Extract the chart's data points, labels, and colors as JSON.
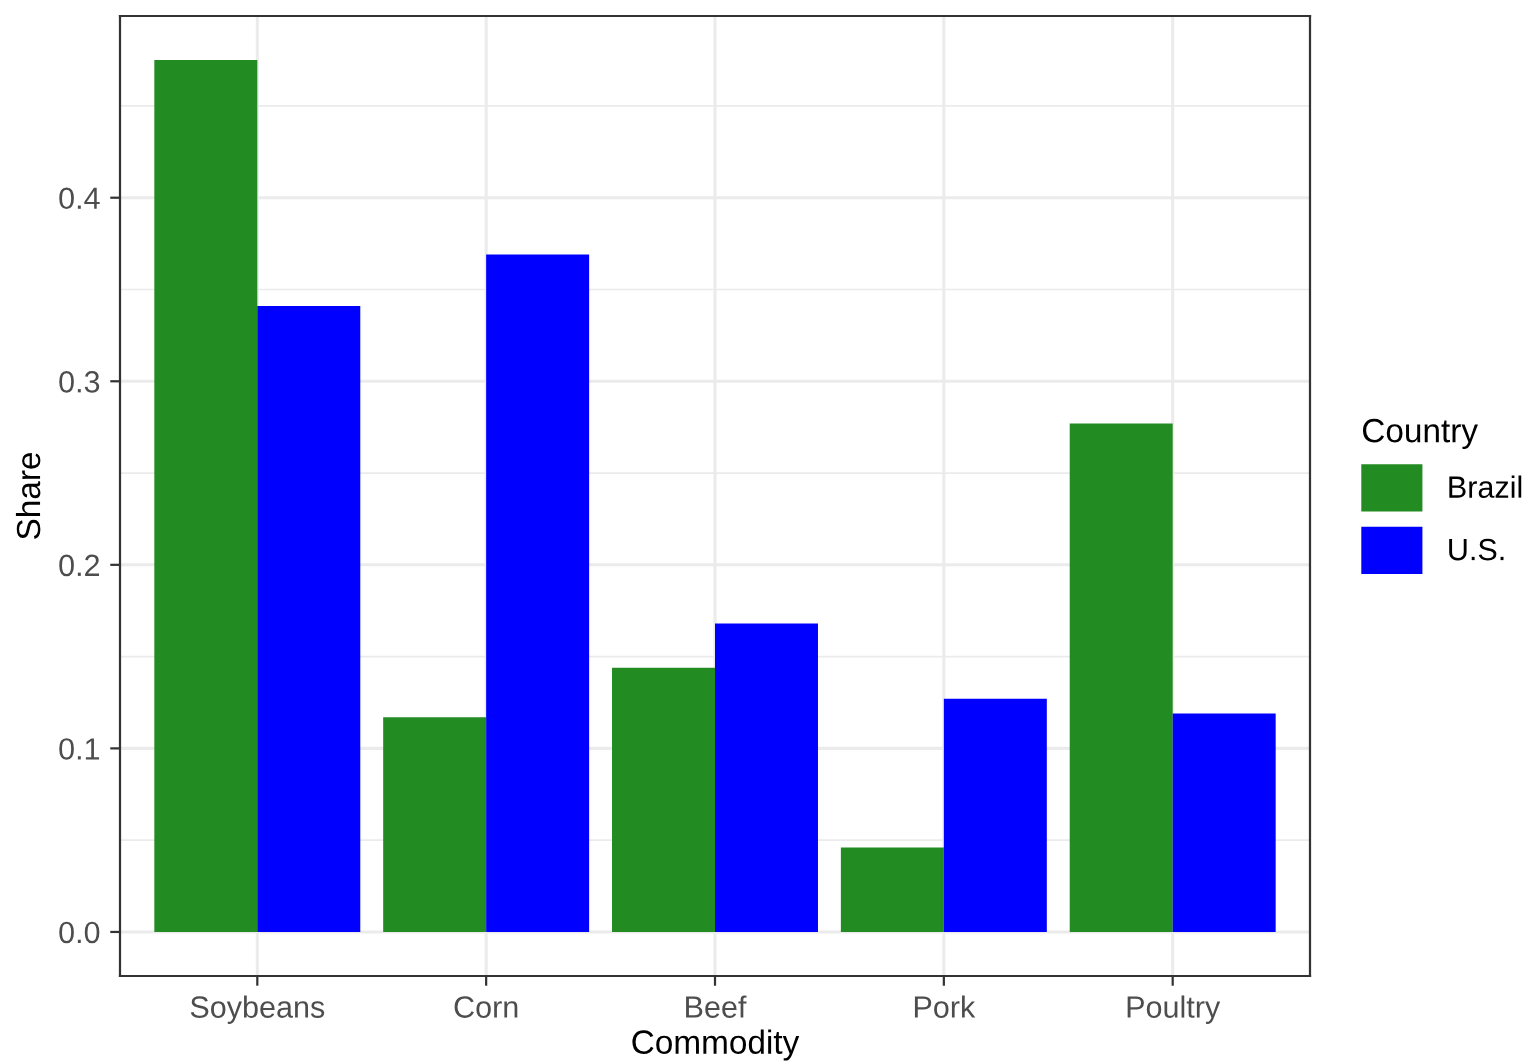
{
  "chart_data": {
    "type": "bar",
    "xlabel": "Commodity",
    "ylabel": "Share",
    "legend_title": "Country",
    "categories": [
      "Soybeans",
      "Corn",
      "Beef",
      "Pork",
      "Poultry"
    ],
    "series": [
      {
        "name": "Brazil",
        "color": "#228b22",
        "values": [
          0.475,
          0.117,
          0.144,
          0.046,
          0.277
        ]
      },
      {
        "name": "U.S.",
        "color": "#0000ff",
        "values": [
          0.341,
          0.369,
          0.168,
          0.127,
          0.119
        ]
      }
    ],
    "ylim": [
      -0.024,
      0.499
    ],
    "yticks": [
      {
        "value": 0,
        "label": "0.0"
      },
      0.1,
      0.2,
      0.3,
      0.4
    ],
    "grid": true,
    "legend": "right"
  }
}
